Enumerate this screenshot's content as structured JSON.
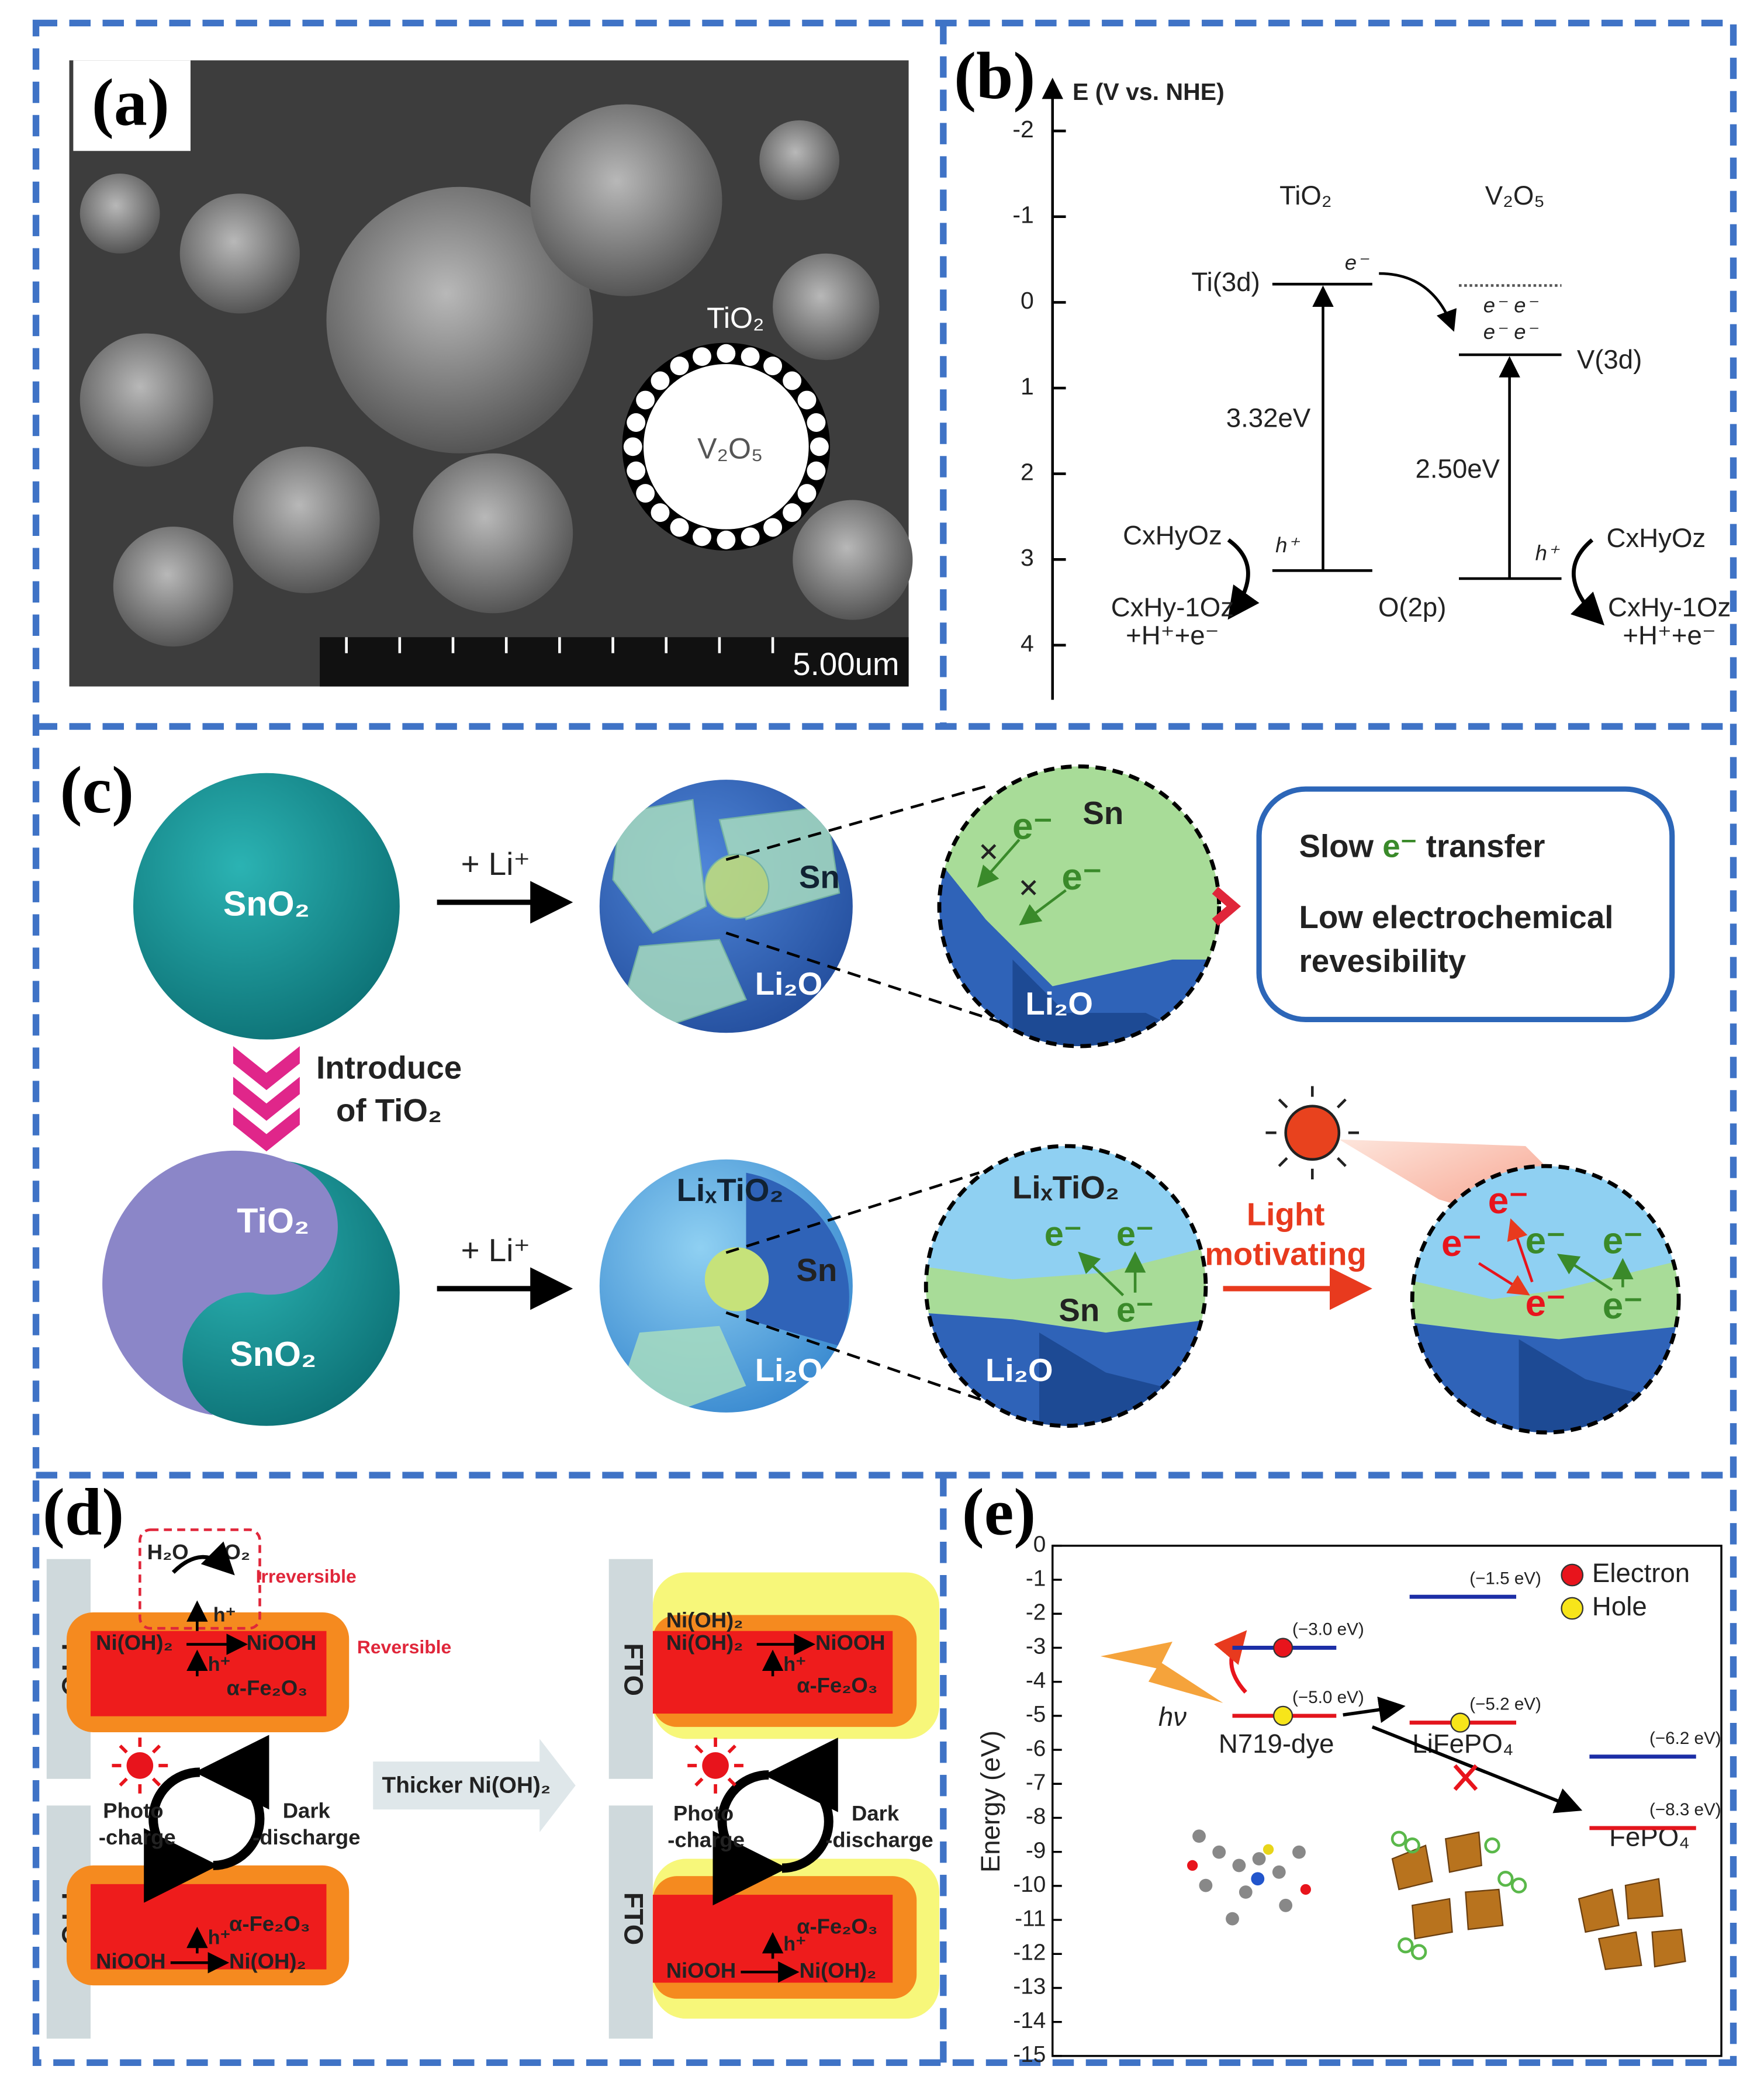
{
  "panel_a": {
    "label": "(a)",
    "shell": "TiO₂",
    "core": "V₂O₅",
    "scale_bar": "5.00um"
  },
  "panel_b": {
    "label": "(b)",
    "axis_title": "E (V vs. NHE)",
    "yticks": [
      -2,
      -1,
      0,
      1,
      2,
      3,
      4
    ],
    "tio2": "TiO₂",
    "v2o5": "V₂O₅",
    "ti3d": "Ti(3d)",
    "v3d": "V(3d)",
    "o2p": "O(2p)",
    "gap_tio2": "3.32eV",
    "gap_v2o5": "2.50eV",
    "electron": "e⁻",
    "hole": "h⁺",
    "reactant": "CxHyOz",
    "product": "CxHy-1Oz",
    "byproduct": "+H⁺+e⁻"
  },
  "panel_c": {
    "label": "(c)",
    "sno2": "SnO₂",
    "add_li": "+ Li⁺",
    "sn": "Sn",
    "li2o": "Li₂O",
    "electron": "e⁻",
    "slow": "Slow",
    "transfer": "transfer",
    "low": "Low electrochemical",
    "revesibility": "revesibility",
    "introduce": "Introduce",
    "of_tio2": "of TiO₂",
    "tio2": "TiO₂",
    "lixtio2": "LiₓTiO₂",
    "light": "Light",
    "motivating": "motivating"
  },
  "panel_d": {
    "label": "(d)",
    "fto": "FTO",
    "h2o": "H₂O",
    "o2": "O₂",
    "irreversible": "Irreversible",
    "reversible": "Reversible",
    "nioh2": "Ni(OH)₂",
    "niooh": "NiOOH",
    "hole": "h⁺",
    "fe2o3": "α-Fe₂O₃",
    "photo": "Photo",
    "charge": "-charge",
    "dark": "Dark",
    "discharge": "-discharge",
    "thicker": "Thicker Ni(OH)₂"
  },
  "panel_e": {
    "label": "(e)",
    "axis_title": "Energy (eV)",
    "yticks": [
      0,
      -1,
      -2,
      -3,
      -4,
      -5,
      -6,
      -7,
      -8,
      -9,
      -10,
      -11,
      -12,
      -13,
      -14,
      -15
    ],
    "levels": [
      {
        "value": -3.0,
        "label": "(−3.0 eV)",
        "color": "#1c2ea6"
      },
      {
        "value": -5.0,
        "label": "(−5.0 eV)",
        "color": "#e3151d"
      },
      {
        "value": -1.5,
        "label": "(−1.5 eV)",
        "color": "#1c2ea6"
      },
      {
        "value": -5.2,
        "label": "(−5.2 eV)",
        "color": "#e3151d"
      },
      {
        "value": -6.2,
        "label": "(−6.2 eV)",
        "color": "#1c2ea6"
      },
      {
        "value": -8.3,
        "label": "(−8.3 eV)",
        "color": "#e3151d"
      }
    ],
    "legend": {
      "electron": "Electron",
      "hole": "Hole",
      "electron_color": "#e8141c",
      "hole_color": "#f7e51a"
    },
    "hv": "hν",
    "n719": "N719-dye",
    "lifepo4": "LiFePO₄",
    "fepo4": "FePO₄"
  }
}
